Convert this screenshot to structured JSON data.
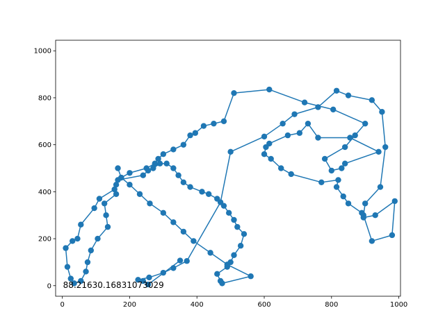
{
  "chart_data": {
    "type": "line",
    "title": "",
    "xlabel": "",
    "ylabel": "",
    "xlim": [
      -20,
      1005
    ],
    "ylim": [
      -45,
      1045
    ],
    "xticks": [
      0,
      200,
      400,
      600,
      800,
      1000
    ],
    "yticks": [
      0,
      200,
      400,
      600,
      800,
      1000
    ],
    "grid": false,
    "color": "#1f77b4",
    "annotation": {
      "text": "88.21630.16831073029",
      "x": 0,
      "y": 0
    },
    "series": [
      {
        "x": [
          350,
          255,
          240,
          225,
          258,
          300,
          330,
          370,
          470,
          500,
          600,
          655,
          690,
          760,
          815,
          850,
          920,
          950,
          960,
          945,
          900,
          895,
          920,
          980,
          988,
          930,
          895,
          890,
          850,
          835,
          815,
          820,
          770,
          680,
          650,
          620,
          600,
          605,
          615,
          670,
          705,
          730,
          760,
          855,
          940,
          840,
          830,
          800,
          780,
          840,
          870,
          900,
          805,
          720,
          615,
          510,
          480,
          450,
          420,
          395,
          380,
          360,
          330,
          300,
          285,
          275,
          250,
          200,
          175,
          160,
          160,
          125,
          130,
          135,
          105,
          85,
          75,
          70,
          55,
          35,
          25,
          15,
          10,
          30,
          45,
          55,
          95,
          110,
          155,
          165,
          240,
          255,
          270,
          290,
          310,
          330,
          345,
          360,
          380,
          415,
          435,
          460,
          480,
          495,
          510,
          520,
          540,
          530,
          510,
          500,
          490,
          460,
          470,
          475,
          560,
          490,
          440,
          390,
          360,
          330,
          300,
          260,
          230,
          200,
          175,
          165
        ],
        "y": [
          107,
          5,
          20,
          25,
          35,
          55,
          75,
          105,
          355,
          570,
          635,
          690,
          730,
          760,
          830,
          810,
          790,
          740,
          590,
          420,
          350,
          300,
          190,
          215,
          360,
          300,
          290,
          310,
          350,
          380,
          420,
          450,
          440,
          475,
          500,
          540,
          560,
          590,
          605,
          640,
          650,
          690,
          630,
          630,
          570,
          520,
          500,
          490,
          540,
          590,
          640,
          690,
          750,
          780,
          835,
          820,
          700,
          690,
          680,
          650,
          640,
          600,
          580,
          560,
          540,
          520,
          500,
          480,
          460,
          430,
          390,
          350,
          300,
          250,
          200,
          150,
          100,
          60,
          20,
          10,
          30,
          80,
          160,
          190,
          200,
          260,
          330,
          370,
          410,
          450,
          470,
          490,
          500,
          520,
          520,
          500,
          470,
          440,
          420,
          400,
          390,
          370,
          340,
          310,
          280,
          250,
          220,
          170,
          130,
          100,
          80,
          50,
          20,
          10,
          40,
          90,
          140,
          190,
          230,
          270,
          310,
          350,
          390,
          430,
          460,
          500
        ]
      }
    ]
  }
}
